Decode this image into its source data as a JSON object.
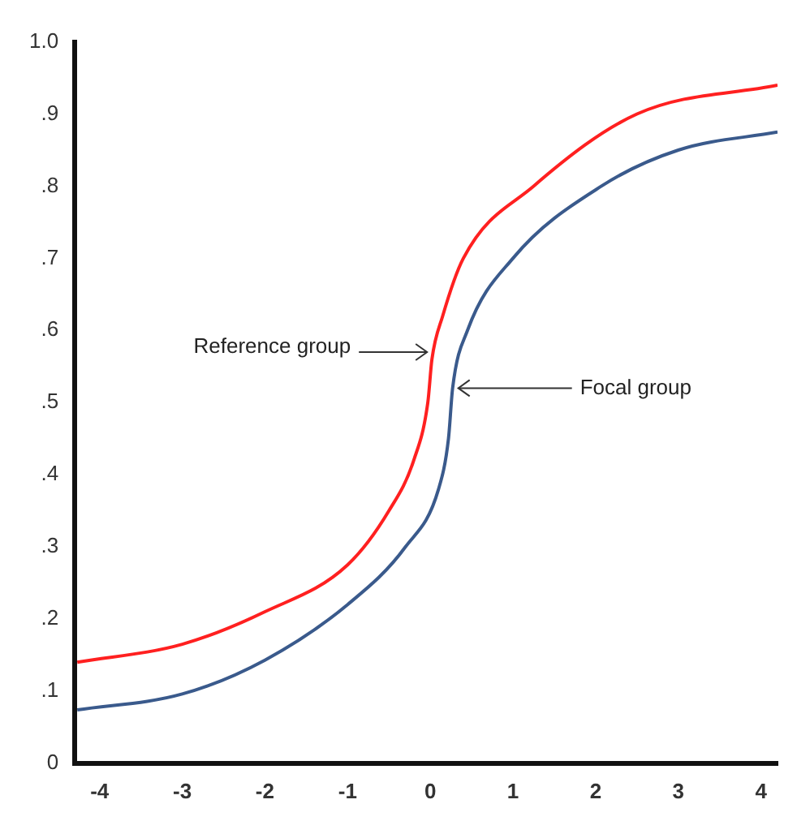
{
  "chart_data": {
    "type": "line",
    "xlim": [
      -4.3,
      4.2
    ],
    "ylim": [
      0,
      1.0
    ],
    "xticks": [
      -4,
      -3,
      -2,
      -1,
      0,
      1,
      2,
      3,
      4
    ],
    "yticks": [
      {
        "value": 0,
        "label": "0"
      },
      {
        "value": 0.1,
        "label": ".1"
      },
      {
        "value": 0.2,
        "label": ".2"
      },
      {
        "value": 0.3,
        "label": ".3"
      },
      {
        "value": 0.4,
        "label": ".4"
      },
      {
        "value": 0.5,
        "label": ".5"
      },
      {
        "value": 0.6,
        "label": ".6"
      },
      {
        "value": 0.7,
        "label": ".7"
      },
      {
        "value": 0.8,
        "label": ".8"
      },
      {
        "value": 0.9,
        "label": ".9"
      },
      {
        "value": 1.0,
        "label": "1.0"
      }
    ],
    "grid": false,
    "legend": false,
    "marker": "none",
    "line_style": "solid",
    "series": [
      {
        "color": "#ff2020",
        "x": [
          -4.27,
          -3,
          -2,
          -1,
          -0.5,
          -0.2,
          -0.03,
          0.02,
          0.15,
          0.4,
          1.25,
          2.5,
          4.2
        ],
        "values": [
          0.14,
          0.165,
          0.21,
          0.275,
          0.35,
          0.42,
          0.5,
          0.56,
          0.62,
          0.7,
          0.8,
          0.9,
          0.94
        ]
      },
      {
        "color": "#3a5a8c",
        "x": [
          -4.27,
          -3,
          -2,
          -1,
          -0.3,
          0.1,
          0.22,
          0.27,
          0.45,
          1.0,
          2.07,
          3,
          4.2
        ],
        "values": [
          0.074,
          0.096,
          0.143,
          0.22,
          0.3,
          0.38,
          0.45,
          0.52,
          0.6,
          0.7,
          0.8,
          0.85,
          0.875
        ]
      }
    ],
    "annotations": [
      {
        "text": "Reference group",
        "x": 0.02,
        "y": 0.57
      },
      {
        "text": "Focal group",
        "x": 0.28,
        "y": 0.52
      }
    ]
  }
}
